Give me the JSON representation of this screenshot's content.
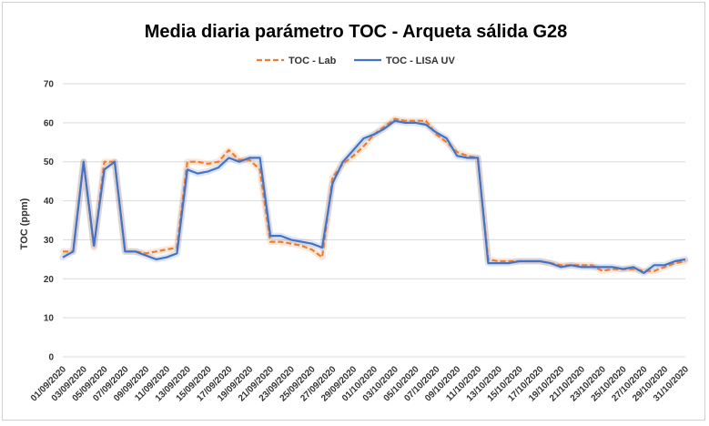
{
  "chart_data": {
    "type": "line",
    "title": "Media diaria parámetro TOC - Arqueta sálida G28",
    "xlabel": "",
    "ylabel": "TOC (ppm)",
    "ylim": [
      0,
      70
    ],
    "yticks": [
      0,
      10,
      20,
      30,
      40,
      50,
      60,
      70
    ],
    "grid": true,
    "legend_position": "top",
    "x": [
      "01/09/2020",
      "02/09/2020",
      "03/09/2020",
      "04/09/2020",
      "05/09/2020",
      "06/09/2020",
      "07/09/2020",
      "08/09/2020",
      "09/09/2020",
      "10/09/2020",
      "11/09/2020",
      "12/09/2020",
      "13/09/2020",
      "14/09/2020",
      "15/09/2020",
      "16/09/2020",
      "17/09/2020",
      "18/09/2020",
      "19/09/2020",
      "20/09/2020",
      "21/09/2020",
      "22/09/2020",
      "23/09/2020",
      "24/09/2020",
      "25/09/2020",
      "26/09/2020",
      "27/09/2020",
      "28/09/2020",
      "29/09/2020",
      "30/09/2020",
      "01/10/2020",
      "02/10/2020",
      "03/10/2020",
      "04/10/2020",
      "05/10/2020",
      "06/10/2020",
      "07/10/2020",
      "08/10/2020",
      "09/10/2020",
      "10/10/2020",
      "11/10/2020",
      "12/10/2020",
      "13/10/2020",
      "14/10/2020",
      "15/10/2020",
      "16/10/2020",
      "17/10/2020",
      "18/10/2020",
      "19/10/2020",
      "20/10/2020",
      "21/10/2020",
      "22/10/2020",
      "23/10/2020",
      "24/10/2020",
      "25/10/2020",
      "26/10/2020",
      "27/10/2020",
      "28/10/2020",
      "29/10/2020",
      "30/10/2020",
      "31/10/2020"
    ],
    "tick_labels": [
      "01/09/2020",
      "03/09/2020",
      "05/09/2020",
      "07/09/2020",
      "09/09/2020",
      "11/09/2020",
      "13/09/2020",
      "15/09/2020",
      "17/09/2020",
      "19/09/2020",
      "21/09/2020",
      "23/09/2020",
      "25/09/2020",
      "27/09/2020",
      "29/09/2020",
      "01/10/2020",
      "03/10/2020",
      "05/10/2020",
      "07/10/2020",
      "09/10/2020",
      "11/10/2020",
      "13/10/2020",
      "15/10/2020",
      "17/10/2020",
      "19/10/2020",
      "21/10/2020",
      "23/10/2020",
      "25/10/2020",
      "27/10/2020",
      "29/10/2020",
      "31/10/2020"
    ],
    "series": [
      {
        "name": "TOC - Lab",
        "color": "#ED7D31",
        "style": "dashed",
        "values": [
          27,
          27,
          50,
          28,
          50,
          50,
          27,
          27,
          26.5,
          27,
          27.5,
          28,
          50,
          50,
          49.5,
          50,
          53,
          50.5,
          50.5,
          48,
          29.5,
          29.5,
          29,
          28.5,
          27.5,
          25.5,
          46,
          49.5,
          51.5,
          54,
          57,
          59,
          61,
          60.5,
          60.5,
          60.5,
          57,
          55,
          52.5,
          51.5,
          51,
          25,
          24.5,
          24.5,
          24.5,
          24.5,
          24.5,
          24,
          23.5,
          23.5,
          23.5,
          23.5,
          22,
          22.5,
          22.5,
          22.5,
          22,
          22,
          23,
          24,
          24.5
        ]
      },
      {
        "name": "TOC - LISA UV",
        "color": "#4472C4",
        "style": "solid",
        "values": [
          25.5,
          27,
          50,
          28.5,
          48,
          50,
          27,
          27,
          26,
          25,
          25.5,
          26.5,
          48,
          47,
          47.5,
          48.5,
          51,
          50,
          51,
          51,
          31,
          31,
          30,
          29.5,
          29,
          28,
          44.5,
          50,
          53,
          56,
          57,
          58.5,
          60.5,
          60,
          60,
          59.5,
          57.5,
          56,
          51.5,
          51,
          51,
          24,
          24,
          24,
          24.5,
          24.5,
          24.5,
          24,
          23,
          23.5,
          23,
          23,
          23,
          23,
          22.5,
          23,
          21.5,
          23.5,
          23.5,
          24.5,
          25
        ]
      }
    ]
  }
}
